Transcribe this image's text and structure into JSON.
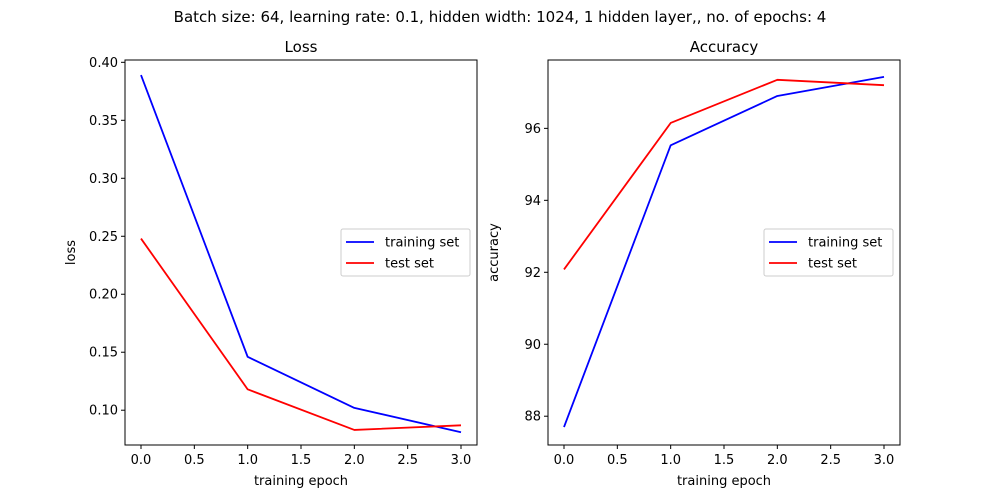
{
  "figure": {
    "suptitle": "Batch size: 64, learning rate: 0.1, hidden width: 1024, 1 hidden layer,, no. of epochs: 4"
  },
  "chart_data": [
    {
      "type": "line",
      "title": "Loss",
      "xlabel": "training epoch",
      "ylabel": "loss",
      "x": [
        0,
        1,
        2,
        3
      ],
      "xlim": [
        -0.15,
        3.15
      ],
      "ylim": [
        0.07,
        0.402
      ],
      "xticks": [
        0.0,
        0.5,
        1.0,
        1.5,
        2.0,
        2.5,
        3.0
      ],
      "xtick_labels": [
        "0.0",
        "0.5",
        "1.0",
        "1.5",
        "2.0",
        "2.5",
        "3.0"
      ],
      "yticks": [
        0.1,
        0.15,
        0.2,
        0.25,
        0.3,
        0.35,
        0.4
      ],
      "ytick_labels": [
        "0.10",
        "0.15",
        "0.20",
        "0.25",
        "0.30",
        "0.35",
        "0.40"
      ],
      "grid": false,
      "legend_position": "center-right",
      "series": [
        {
          "name": "training set",
          "color": "#0000ff",
          "values": [
            0.389,
            0.146,
            0.102,
            0.081
          ]
        },
        {
          "name": "test set",
          "color": "#ff0000",
          "values": [
            0.248,
            0.118,
            0.083,
            0.087
          ]
        }
      ]
    },
    {
      "type": "line",
      "title": "Accuracy",
      "xlabel": "training epoch",
      "ylabel": "accuracy",
      "x": [
        0,
        1,
        2,
        3
      ],
      "xlim": [
        -0.15,
        3.15
      ],
      "ylim": [
        87.2,
        97.9
      ],
      "xticks": [
        0.0,
        0.5,
        1.0,
        1.5,
        2.0,
        2.5,
        3.0
      ],
      "xtick_labels": [
        "0.0",
        "0.5",
        "1.0",
        "1.5",
        "2.0",
        "2.5",
        "3.0"
      ],
      "yticks": [
        88,
        90,
        92,
        94,
        96
      ],
      "ytick_labels": [
        "88",
        "90",
        "92",
        "94",
        "96"
      ],
      "grid": false,
      "legend_position": "center-right",
      "series": [
        {
          "name": "training set",
          "color": "#0000ff",
          "values": [
            87.7,
            95.53,
            96.9,
            97.43
          ]
        },
        {
          "name": "test set",
          "color": "#ff0000",
          "values": [
            92.08,
            96.15,
            97.35,
            97.2
          ]
        }
      ]
    }
  ]
}
